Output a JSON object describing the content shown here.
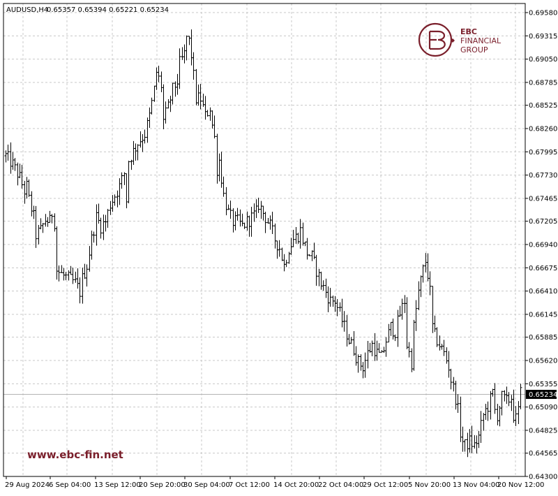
{
  "header": {
    "symbol": "AUDUSD,H4",
    "ohlc": "0.65357 0.65394 0.65221 0.65234"
  },
  "logo": {
    "line1": "EBC",
    "line2": "FINANCIAL",
    "line3": "GROUP",
    "color": "#7a1f2b"
  },
  "watermark": "www.ebc-fin.net",
  "colors": {
    "grid": "#c8c8c8",
    "bar": "#000000",
    "axis": "#000000",
    "price_line": "#b4b4b4",
    "price_label_bg": "#000000",
    "price_label_fg": "#ffffff"
  },
  "chart_data": {
    "type": "ohlc",
    "symbol": "AUDUSD",
    "timeframe": "H4",
    "grid": true,
    "ylim": [
      0.643,
      0.6958
    ],
    "y_ticks": [
      "0.69580",
      "0.69315",
      "0.69050",
      "0.68785",
      "0.68525",
      "0.68260",
      "0.67995",
      "0.67730",
      "0.67465",
      "0.67205",
      "0.66940",
      "0.66675",
      "0.66410",
      "0.66145",
      "0.65885",
      "0.65620",
      "0.65355",
      "0.65090",
      "0.64825",
      "0.64565",
      "0.64300"
    ],
    "x_ticks": [
      "29 Aug 2024",
      "6 Sep 04:00",
      "13 Sep 12:00",
      "20 Sep 20:00",
      "30 Sep 04:00",
      "7 Oct 12:00",
      "14 Oct 20:00",
      "22 Oct 04:00",
      "29 Oct 12:00",
      "5 Nov 20:00",
      "13 Nov 04:00",
      "20 Nov 12:00"
    ],
    "current_price": "0.65234",
    "close_path": [
      [
        0,
        0.6795
      ],
      [
        3,
        0.6785
      ],
      [
        6,
        0.677
      ],
      [
        8,
        0.6755
      ],
      [
        9,
        0.676
      ],
      [
        10,
        0.6745
      ],
      [
        11,
        0.6735
      ],
      [
        12,
        0.6725
      ],
      [
        13,
        0.6705
      ],
      [
        15,
        0.671
      ],
      [
        17,
        0.6722
      ],
      [
        19,
        0.672
      ],
      [
        20,
        0.673
      ],
      [
        21,
        0.672
      ],
      [
        22,
        0.6665
      ],
      [
        24,
        0.666
      ],
      [
        27,
        0.6655
      ],
      [
        30,
        0.665
      ],
      [
        32,
        0.664
      ],
      [
        33,
        0.6655
      ],
      [
        35,
        0.667
      ],
      [
        37,
        0.67
      ],
      [
        39,
        0.6725
      ],
      [
        41,
        0.6715
      ],
      [
        43,
        0.672
      ],
      [
        45,
        0.674
      ],
      [
        47,
        0.675
      ],
      [
        49,
        0.676
      ],
      [
        51,
        0.6775
      ],
      [
        52,
        0.6745
      ],
      [
        53,
        0.679
      ],
      [
        55,
        0.68
      ],
      [
        57,
        0.681
      ],
      [
        60,
        0.682
      ],
      [
        62,
        0.684
      ],
      [
        64,
        0.687
      ],
      [
        65,
        0.689
      ],
      [
        67,
        0.6875
      ],
      [
        68,
        0.6835
      ],
      [
        70,
        0.685
      ],
      [
        72,
        0.687
      ],
      [
        74,
        0.688
      ],
      [
        75,
        0.69
      ],
      [
        77,
        0.691
      ],
      [
        78,
        0.693
      ],
      [
        79,
        0.6925
      ],
      [
        80,
        0.691
      ],
      [
        81,
        0.6885
      ],
      [
        82,
        0.686
      ],
      [
        84,
        0.686
      ],
      [
        86,
        0.684
      ],
      [
        88,
        0.685
      ],
      [
        89,
        0.683
      ],
      [
        90,
        0.6815
      ],
      [
        91,
        0.678
      ],
      [
        92,
        0.679
      ],
      [
        94,
        0.675
      ],
      [
        96,
        0.673
      ],
      [
        98,
        0.672
      ],
      [
        100,
        0.672
      ],
      [
        102,
        0.6715
      ],
      [
        104,
        0.672
      ],
      [
        106,
        0.6725
      ],
      [
        108,
        0.673
      ],
      [
        109,
        0.674
      ],
      [
        110,
        0.6735
      ],
      [
        112,
        0.6725
      ],
      [
        114,
        0.6715
      ],
      [
        116,
        0.67
      ],
      [
        118,
        0.669
      ],
      [
        120,
        0.667
      ],
      [
        122,
        0.669
      ],
      [
        124,
        0.67
      ],
      [
        126,
        0.6705
      ],
      [
        127,
        0.671
      ],
      [
        128,
        0.67
      ],
      [
        130,
        0.6685
      ],
      [
        132,
        0.668
      ],
      [
        134,
        0.6665
      ],
      [
        136,
        0.665
      ],
      [
        138,
        0.664
      ],
      [
        140,
        0.663
      ],
      [
        142,
        0.663
      ],
      [
        144,
        0.6615
      ],
      [
        146,
        0.66
      ],
      [
        148,
        0.6585
      ],
      [
        150,
        0.6575
      ],
      [
        152,
        0.656
      ],
      [
        154,
        0.6555
      ],
      [
        156,
        0.657
      ],
      [
        158,
        0.658
      ],
      [
        160,
        0.657
      ],
      [
        162,
        0.6565
      ],
      [
        164,
        0.6585
      ],
      [
        166,
        0.66
      ],
      [
        168,
        0.6595
      ],
      [
        170,
        0.6615
      ],
      [
        172,
        0.663
      ],
      [
        173,
        0.658
      ],
      [
        175,
        0.656
      ],
      [
        176,
        0.66
      ],
      [
        178,
        0.664
      ],
      [
        180,
        0.6665
      ],
      [
        181,
        0.6675
      ],
      [
        182,
        0.666
      ],
      [
        183,
        0.664
      ],
      [
        184,
        0.66
      ],
      [
        185,
        0.659
      ],
      [
        187,
        0.658
      ],
      [
        189,
        0.657
      ],
      [
        191,
        0.6555
      ],
      [
        192,
        0.654
      ],
      [
        194,
        0.652
      ],
      [
        195,
        0.6505
      ],
      [
        196,
        0.648
      ],
      [
        197,
        0.647
      ],
      [
        198,
        0.6465
      ],
      [
        200,
        0.647
      ],
      [
        202,
        0.6465
      ],
      [
        204,
        0.6475
      ],
      [
        206,
        0.65
      ],
      [
        208,
        0.651
      ],
      [
        210,
        0.6525
      ],
      [
        211,
        0.6505
      ],
      [
        212,
        0.65
      ],
      [
        214,
        0.652
      ],
      [
        216,
        0.6515
      ],
      [
        218,
        0.652
      ],
      [
        219,
        0.65
      ],
      [
        220,
        0.6495
      ],
      [
        221,
        0.6505
      ],
      [
        222,
        0.6525
      ]
    ]
  }
}
